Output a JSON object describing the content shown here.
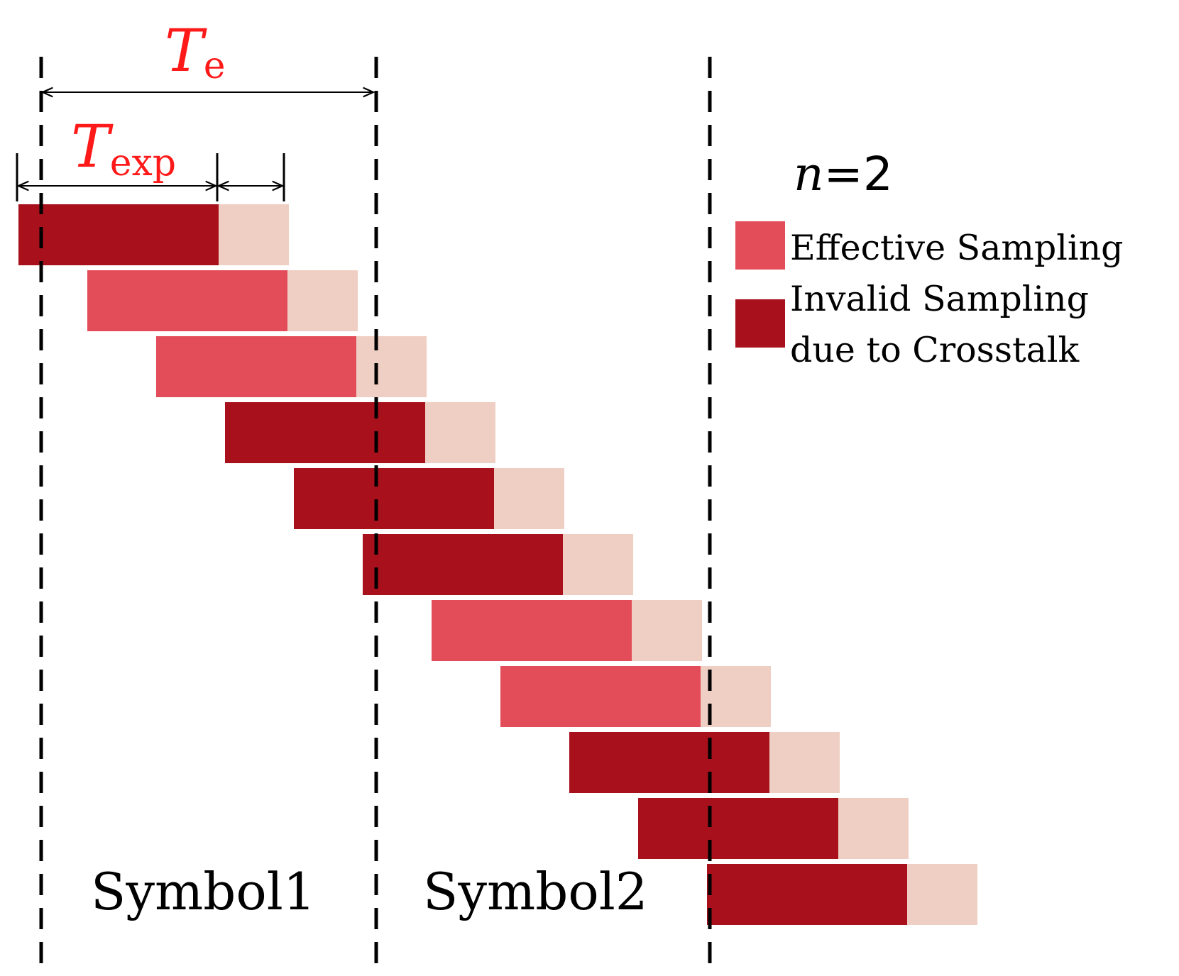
{
  "labels": {
    "te_main": "T",
    "te_sub": "e",
    "texp_main": "T",
    "texp_sub": "exp",
    "n_var": "n",
    "n_eq": "=2",
    "symbol1": "Symbol1",
    "symbol2": "Symbol2"
  },
  "legend": {
    "effective": "Effective Sampling",
    "invalid_line1": "Invalid Sampling",
    "invalid_line2": "due to Crosstalk"
  },
  "colors": {
    "effective": "#e34d5a",
    "invalid": "#a8101c",
    "tail": "#efcfc3",
    "annotation": "#ff1a1a"
  },
  "rows": [
    {
      "type": "invalid"
    },
    {
      "type": "effective"
    },
    {
      "type": "effective"
    },
    {
      "type": "invalid"
    },
    {
      "type": "invalid"
    },
    {
      "type": "invalid"
    },
    {
      "type": "effective"
    },
    {
      "type": "effective"
    },
    {
      "type": "invalid"
    },
    {
      "type": "invalid"
    },
    {
      "type": "invalid"
    }
  ]
}
